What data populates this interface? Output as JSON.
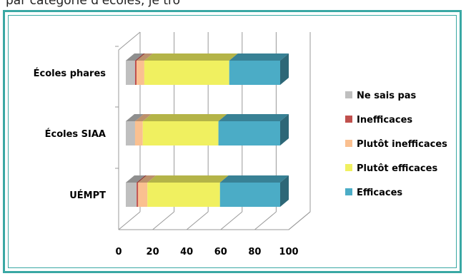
{
  "caption_fragment": "par categorie d'ecoles, je tro",
  "chart_data": {
    "type": "bar",
    "orientation": "horizontal",
    "stacked": true,
    "three_d": true,
    "title": "",
    "xlabel": "",
    "ylabel": "",
    "xlim": [
      0,
      100
    ],
    "xticks": [
      0,
      20,
      40,
      60,
      80,
      100
    ],
    "grid": true,
    "legend_position": "right",
    "categories": [
      "Écoles phares",
      "Écoles SIAA",
      "UÉMPT"
    ],
    "series": [
      {
        "name": "Ne sais pas",
        "color": "#bfbfbf",
        "values": [
          6,
          6,
          7
        ]
      },
      {
        "name": "Inefficaces",
        "color": "#c0504d",
        "values": [
          1,
          0,
          1
        ]
      },
      {
        "name": "Plutôt inefficaces",
        "color": "#fac090",
        "values": [
          5,
          5,
          6
        ]
      },
      {
        "name": "Plutôt efficaces",
        "color": "#f0f060",
        "values": [
          55,
          49,
          47
        ]
      },
      {
        "name": "Efficaces",
        "color": "#4bacc6",
        "values": [
          33,
          40,
          39
        ]
      }
    ]
  }
}
